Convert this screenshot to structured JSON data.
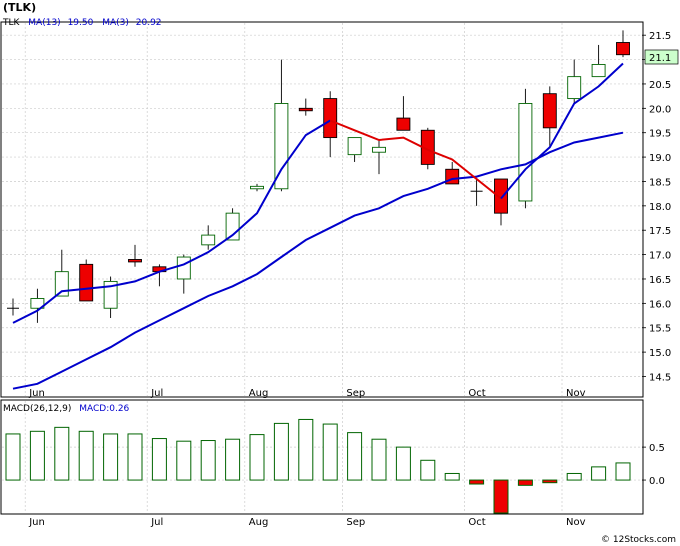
{
  "header": {
    "title": "(TLK)",
    "legend": [
      {
        "label": "TLK",
        "color": "#000000"
      },
      {
        "label": "MA(13)",
        "value": "19.50",
        "color": "#0000cc"
      },
      {
        "label": "MA(3)",
        "value": "20.92",
        "color": "#0000cc"
      }
    ],
    "macd_legend": [
      {
        "label": "MACD(26,12,9)",
        "color": "#000000"
      },
      {
        "label": "MACD:0.26",
        "color": "#0000cc"
      }
    ],
    "watermark": "© 12Stocks.com"
  },
  "colors": {
    "up_body": "#ffffff",
    "down_body": "#ee0000",
    "candle_edge": "#006400",
    "ma_line": "#0000cc",
    "ma_highlight": "#dd0000",
    "macd_bar": "#006400",
    "macd_neg_fill": "#ee0000",
    "price_tag_bg": "#ccffcc",
    "grid": "#cccccc"
  },
  "chart_data": [
    {
      "type": "candlestick",
      "x_ticks": [
        "Jun",
        "Jul",
        "Aug",
        "Sep",
        "Oct",
        "Nov"
      ],
      "y_range": [
        14.1,
        21.75
      ],
      "y_ticks": [
        "14.5",
        "15.0",
        "15.5",
        "16.0",
        "16.5",
        "17.0",
        "17.5",
        "18.0",
        "18.5",
        "19.0",
        "19.5",
        "20.0",
        "20.5",
        "21.0",
        "21.5"
      ],
      "last_price": "21.1",
      "candles": [
        {
          "o": 15.9,
          "h": 16.1,
          "l": 15.75,
          "c": 15.9
        },
        {
          "o": 15.9,
          "h": 16.3,
          "l": 15.6,
          "c": 16.1
        },
        {
          "o": 16.15,
          "h": 17.1,
          "l": 16.15,
          "c": 16.65
        },
        {
          "o": 16.8,
          "h": 16.9,
          "l": 16.05,
          "c": 16.05
        },
        {
          "o": 15.9,
          "h": 16.55,
          "l": 15.7,
          "c": 16.45
        },
        {
          "o": 16.9,
          "h": 17.2,
          "l": 16.75,
          "c": 16.85
        },
        {
          "o": 16.75,
          "h": 16.8,
          "l": 16.35,
          "c": 16.65
        },
        {
          "o": 16.5,
          "h": 17.0,
          "l": 16.2,
          "c": 16.95
        },
        {
          "o": 17.2,
          "h": 17.6,
          "l": 17.1,
          "c": 17.4
        },
        {
          "o": 17.3,
          "h": 17.95,
          "l": 17.3,
          "c": 17.85
        },
        {
          "o": 18.35,
          "h": 18.45,
          "l": 18.3,
          "c": 18.4
        },
        {
          "o": 18.35,
          "h": 21.0,
          "l": 18.3,
          "c": 20.1
        },
        {
          "o": 20.0,
          "h": 20.2,
          "l": 19.85,
          "c": 19.95
        },
        {
          "o": 20.2,
          "h": 20.35,
          "l": 19.0,
          "c": 19.4
        },
        {
          "o": 19.05,
          "h": 19.4,
          "l": 18.9,
          "c": 19.4
        },
        {
          "o": 19.1,
          "h": 19.35,
          "l": 18.65,
          "c": 19.2
        },
        {
          "o": 19.8,
          "h": 20.25,
          "l": 19.55,
          "c": 19.55
        },
        {
          "o": 19.55,
          "h": 19.6,
          "l": 18.75,
          "c": 18.85
        },
        {
          "o": 18.75,
          "h": 18.9,
          "l": 18.45,
          "c": 18.45
        },
        {
          "o": 18.3,
          "h": 18.55,
          "l": 18.0,
          "c": 18.3
        },
        {
          "o": 18.55,
          "h": 18.55,
          "l": 17.6,
          "c": 17.85
        },
        {
          "o": 18.1,
          "h": 20.4,
          "l": 17.95,
          "c": 20.1
        },
        {
          "o": 20.3,
          "h": 20.45,
          "l": 19.2,
          "c": 19.6
        },
        {
          "o": 20.2,
          "h": 21.0,
          "l": 20.1,
          "c": 20.65
        },
        {
          "o": 20.65,
          "h": 21.3,
          "l": 20.65,
          "c": 20.9
        },
        {
          "o": 21.35,
          "h": 21.6,
          "l": 21.05,
          "c": 21.1
        }
      ],
      "ma13": [
        14.25,
        14.35,
        14.6,
        14.85,
        15.1,
        15.4,
        15.65,
        15.9,
        16.15,
        16.35,
        16.6,
        16.95,
        17.3,
        17.55,
        17.8,
        17.95,
        18.2,
        18.35,
        18.55,
        18.6,
        18.75,
        18.85,
        19.1,
        19.3,
        19.4,
        19.5
      ],
      "ma3": [
        15.6,
        15.85,
        16.25,
        16.3,
        16.35,
        16.45,
        16.65,
        16.8,
        17.05,
        17.4,
        17.85,
        18.75,
        19.45,
        19.75,
        19.55,
        19.35,
        19.4,
        19.15,
        18.95,
        18.55,
        18.15,
        18.75,
        19.2,
        20.1,
        20.45,
        20.92
      ],
      "ma3_highlight": [
        13,
        20
      ]
    },
    {
      "type": "bar",
      "name": "MACD",
      "y_range": [
        -0.5,
        1.2
      ],
      "y_ticks": [
        "0.5",
        "0.0"
      ],
      "values": [
        0.7,
        0.74,
        0.8,
        0.74,
        0.7,
        0.7,
        0.63,
        0.59,
        0.6,
        0.62,
        0.69,
        0.86,
        0.92,
        0.85,
        0.72,
        0.62,
        0.5,
        0.3,
        0.1,
        -0.06,
        -0.5,
        -0.08,
        -0.04,
        0.1,
        0.2,
        0.26
      ]
    }
  ]
}
